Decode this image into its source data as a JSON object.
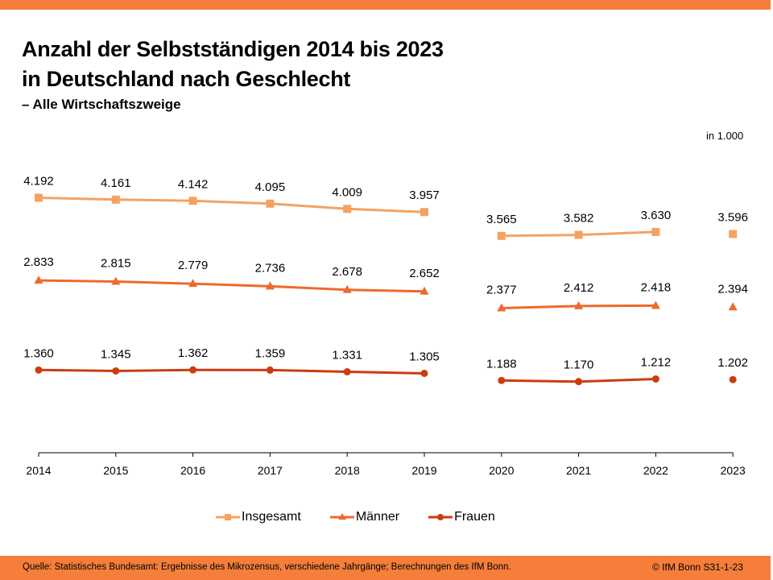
{
  "header": {
    "title_line1": "Anzahl der Selbstständigen 2014 bis 2023",
    "title_line2": "in Deutschland nach Geschlecht",
    "subtitle": "– Alle Wirtschaftszweige",
    "unit": "in 1.000"
  },
  "colors": {
    "brand_orange": "#f47e3a",
    "insgesamt": "#f4a261",
    "maenner": "#ee6a2c",
    "frauen": "#cc3c0e"
  },
  "chart_data": {
    "type": "line",
    "title": "Anzahl der Selbstständigen 2014 bis 2023 in Deutschland nach Geschlecht – Alle Wirtschaftszweige",
    "xlabel": "",
    "ylabel": "in 1.000",
    "ylim": [
      0,
      5800
    ],
    "grid": false,
    "legend_position": "bottom",
    "categories": [
      "2014",
      "2015",
      "2016",
      "2017",
      "2018",
      "2019",
      "2020",
      "2021",
      "2022",
      "2023"
    ],
    "break_after_index": 5,
    "series": [
      {
        "name": "Insgesamt",
        "marker": "square",
        "color": "#f4a261",
        "values": [
          4192,
          4161,
          4142,
          4095,
          4009,
          3957,
          3565,
          3582,
          3630,
          3596
        ],
        "labels": [
          "4.192",
          "4.161",
          "4.142",
          "4.095",
          "4.009",
          "3.957",
          "3.565",
          "3.582",
          "3.630",
          "3.596"
        ]
      },
      {
        "name": "Männer",
        "marker": "triangle",
        "color": "#ee6a2c",
        "values": [
          2833,
          2815,
          2779,
          2736,
          2678,
          2652,
          2377,
          2412,
          2418,
          2394
        ],
        "labels": [
          "2.833",
          "2.815",
          "2.779",
          "2.736",
          "2.678",
          "2.652",
          "2.377",
          "2.412",
          "2.418",
          "2.394"
        ]
      },
      {
        "name": "Frauen",
        "marker": "circle",
        "color": "#cc3c0e",
        "values": [
          1360,
          1345,
          1362,
          1359,
          1331,
          1305,
          1188,
          1170,
          1212,
          1202
        ],
        "labels": [
          "1.360",
          "1.345",
          "1.362",
          "1.359",
          "1.331",
          "1.305",
          "1.188",
          "1.170",
          "1.212",
          "1.202"
        ]
      }
    ],
    "annotations": [
      "in 1.000"
    ]
  },
  "legend": [
    {
      "label": "Insgesamt",
      "color": "#f4a261",
      "marker": "square"
    },
    {
      "label": "Männer",
      "color": "#ee6a2c",
      "marker": "triangle"
    },
    {
      "label": "Frauen",
      "color": "#cc3c0e",
      "marker": "circle"
    }
  ],
  "footer": {
    "source": "Quelle: Statistisches Bundesamt: Ergebnisse des Mikrozensus, verschiedene Jahrgänge; Berechnungen des IfM Bonn.",
    "copyright": "© IfM Bonn  S31-1-23"
  }
}
